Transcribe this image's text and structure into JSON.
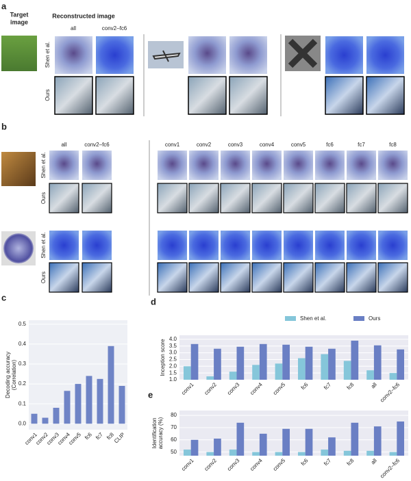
{
  "panel_a": {
    "label": "a",
    "target_heading": [
      "Target",
      "image"
    ],
    "recon_heading": "Reconstructed image",
    "columns": [
      "all",
      "conv2–fc6"
    ],
    "rows": [
      "Shen et al.",
      "Ours"
    ]
  },
  "panel_b": {
    "label": "b",
    "columns": [
      "all",
      "conv2–fc6",
      "conv1",
      "conv2",
      "conv3",
      "conv4",
      "conv5",
      "fc6",
      "fc7",
      "fc8"
    ],
    "rows": [
      "Shen et al.",
      "Ours"
    ]
  },
  "chart_data": [
    {
      "type": "bar",
      "panel_label": "c",
      "ylabel": [
        "Decoding accuracy",
        "(Correlation)"
      ],
      "categories": [
        "conv1",
        "conv2",
        "conv3",
        "conv4",
        "conv5",
        "fc6",
        "fc7",
        "fc8",
        "CLIP"
      ],
      "values": [
        0.05,
        0.03,
        0.08,
        0.165,
        0.2,
        0.24,
        0.225,
        0.39,
        0.19
      ],
      "color": "#6f84c6",
      "ylim": [
        -0.03,
        0.52
      ],
      "yticks": [
        {
          "value": 0,
          "label": "0.0"
        },
        0.1,
        0.2,
        0.3,
        0.4,
        0.5
      ],
      "grid": true,
      "background": "#eef0f5"
    },
    {
      "type": "grouped_bar",
      "panel_label": "d",
      "ylabel": [
        "Inception score"
      ],
      "categories": [
        "conv1",
        "conv2",
        "conv3",
        "conv4",
        "conv5",
        "fc6",
        "fc7",
        "fc8",
        "all",
        "conv2–fc6"
      ],
      "series": [
        {
          "name": "Shen et al.",
          "color": "#85c6da",
          "values": [
            2.0,
            1.25,
            1.6,
            2.1,
            2.2,
            2.6,
            2.9,
            2.4,
            1.7,
            1.5
          ]
        },
        {
          "name": "Ours",
          "color": "#6a7fc4",
          "values": [
            3.65,
            3.3,
            3.45,
            3.65,
            3.6,
            3.45,
            3.3,
            3.9,
            3.55,
            3.25
          ]
        }
      ],
      "ylim": [
        1.0,
        4.3
      ],
      "yticks": [
        {
          "value": 1,
          "label": "1.0"
        },
        {
          "value": 1.5,
          "label": "1.5"
        },
        {
          "value": 2,
          "label": "2.0"
        },
        {
          "value": 2.5,
          "label": "2.5"
        },
        {
          "value": 3,
          "label": "3.0"
        },
        {
          "value": 3.5,
          "label": "3.5"
        },
        {
          "value": 4,
          "label": "4.0"
        }
      ],
      "grid": true,
      "background": "#eaeaf2",
      "legend": "top-right"
    },
    {
      "type": "grouped_bar",
      "panel_label": "e",
      "ylabel": [
        "Identification",
        "accuracy (%)"
      ],
      "categories": [
        "conv1",
        "conv2",
        "conv3",
        "conv4",
        "conv5",
        "fc6",
        "fc7",
        "fc8",
        "all",
        "conv2–fc6"
      ],
      "series": [
        {
          "name": "Shen et al.",
          "color": "#85c6da",
          "values": [
            52,
            50,
            52,
            50,
            50,
            50,
            52,
            51,
            51,
            50
          ]
        },
        {
          "name": "Ours",
          "color": "#6a7fc4",
          "values": [
            60,
            61,
            74,
            65,
            69,
            69,
            62,
            74,
            71,
            75
          ]
        }
      ],
      "ylim": [
        47,
        84
      ],
      "yticks": [
        50,
        60,
        70,
        80
      ],
      "grid": true,
      "background": "#eaeaf2"
    }
  ]
}
